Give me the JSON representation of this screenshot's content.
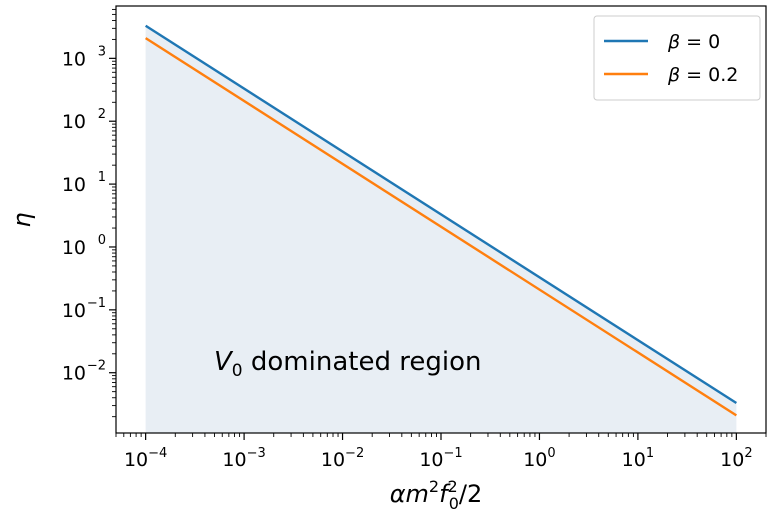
{
  "chart_data": {
    "type": "line",
    "x_scale": "log",
    "y_scale": "log",
    "xlim": [
      5e-05,
      200
    ],
    "ylim": [
      0.0011,
      6800
    ],
    "x_ticks": [
      {
        "base": "10",
        "exp": "−4",
        "value": 0.0001
      },
      {
        "base": "10",
        "exp": "−3",
        "value": 0.001
      },
      {
        "base": "10",
        "exp": "−2",
        "value": 0.01
      },
      {
        "base": "10",
        "exp": "−1",
        "value": 0.1
      },
      {
        "base": "10",
        "exp": "0",
        "value": 1
      },
      {
        "base": "10",
        "exp": "1",
        "value": 10
      },
      {
        "base": "10",
        "exp": "2",
        "value": 100
      }
    ],
    "y_ticks": [
      {
        "base": "10",
        "exp": "−2",
        "value": 0.01
      },
      {
        "base": "10",
        "exp": "−1",
        "value": 0.1
      },
      {
        "base": "10",
        "exp": "0",
        "value": 1
      },
      {
        "base": "10",
        "exp": "1",
        "value": 10
      },
      {
        "base": "10",
        "exp": "2",
        "value": 100
      },
      {
        "base": "10",
        "exp": "3",
        "value": 1000
      }
    ],
    "xlabel": "αm²f₀²/2",
    "ylabel": "η",
    "series": [
      {
        "name": "β = 0",
        "color": "#1f77b4",
        "x": [
          0.0001,
          100
        ],
        "y": [
          3300,
          0.0033
        ]
      },
      {
        "name": "β = 0.2",
        "color": "#ff7f0e",
        "x": [
          0.0001,
          100
        ],
        "y": [
          2100,
          0.0021
        ]
      }
    ],
    "fill": {
      "color": "#e8eef4",
      "under_series": "β = 0"
    },
    "annotation": {
      "text_main": "V",
      "text_sub": "0",
      "text_rest": " dominated region"
    },
    "legend_position": "upper right",
    "grid": false
  }
}
